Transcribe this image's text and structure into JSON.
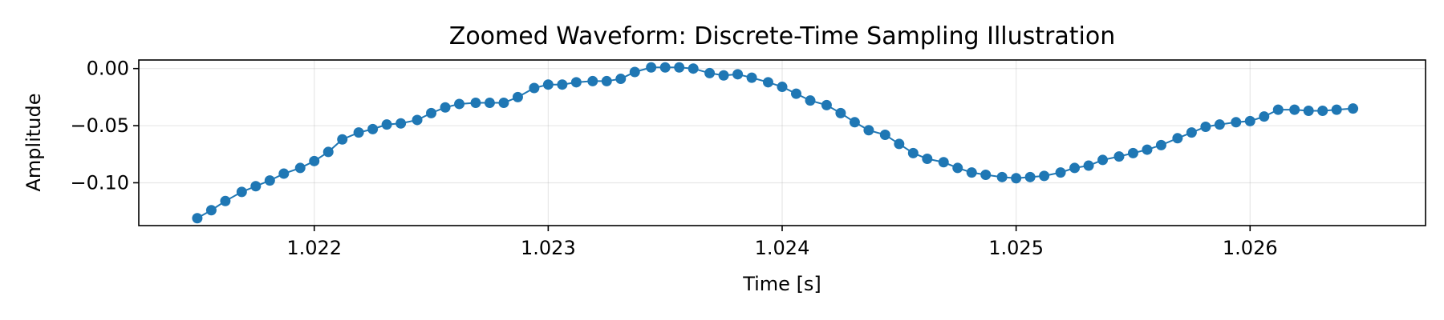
{
  "chart_data": {
    "type": "line",
    "title": "Zoomed Waveform: Discrete-Time Sampling Illustration",
    "xlabel": "Time [s]",
    "ylabel": "Amplitude",
    "xlim": [
      1.02125,
      1.02675
    ],
    "ylim": [
      -0.1375,
      0.0075
    ],
    "xticks": [
      1.022,
      1.023,
      1.024,
      1.025,
      1.026
    ],
    "xtick_labels": [
      "1.022",
      "1.023",
      "1.024",
      "1.025",
      "1.026"
    ],
    "yticks": [
      0.0,
      -0.05,
      -0.1
    ],
    "ytick_labels": [
      "0.00",
      "−0.05",
      "−0.10"
    ],
    "grid": true,
    "markers": true,
    "series": [
      {
        "color": "#1f77b4",
        "x": [
          1.0215,
          1.02156,
          1.02162,
          1.02169,
          1.02175,
          1.02181,
          1.02187,
          1.02194,
          1.022,
          1.02206,
          1.02212,
          1.02219,
          1.02225,
          1.02231,
          1.02237,
          1.02244,
          1.0225,
          1.02256,
          1.02262,
          1.02269,
          1.02275,
          1.02281,
          1.02287,
          1.02294,
          1.023,
          1.02306,
          1.02312,
          1.02319,
          1.02325,
          1.02331,
          1.02337,
          1.02344,
          1.0235,
          1.02356,
          1.02362,
          1.02369,
          1.02375,
          1.02381,
          1.02387,
          1.02394,
          1.024,
          1.02406,
          1.02412,
          1.02419,
          1.02425,
          1.02431,
          1.02437,
          1.02444,
          1.0245,
          1.02456,
          1.02462,
          1.02469,
          1.02475,
          1.02481,
          1.02487,
          1.02494,
          1.025,
          1.02506,
          1.02512,
          1.02519,
          1.02525,
          1.02531,
          1.02537,
          1.02544,
          1.0255,
          1.02556,
          1.02562,
          1.02569,
          1.02575,
          1.02581,
          1.02587,
          1.02594,
          1.026,
          1.02606,
          1.02612,
          1.02619,
          1.02625,
          1.02631,
          1.02637,
          1.02644
        ],
        "y": [
          -0.131,
          -0.124,
          -0.116,
          -0.108,
          -0.103,
          -0.098,
          -0.092,
          -0.087,
          -0.081,
          -0.073,
          -0.062,
          -0.056,
          -0.053,
          -0.049,
          -0.048,
          -0.045,
          -0.039,
          -0.034,
          -0.031,
          -0.03,
          -0.03,
          -0.03,
          -0.025,
          -0.017,
          -0.014,
          -0.014,
          -0.012,
          -0.011,
          -0.011,
          -0.009,
          -0.003,
          0.001,
          0.001,
          0.001,
          0.0,
          -0.004,
          -0.006,
          -0.005,
          -0.008,
          -0.012,
          -0.016,
          -0.022,
          -0.028,
          -0.032,
          -0.039,
          -0.047,
          -0.054,
          -0.058,
          -0.066,
          -0.074,
          -0.079,
          -0.082,
          -0.087,
          -0.091,
          -0.093,
          -0.095,
          -0.096,
          -0.095,
          -0.094,
          -0.091,
          -0.087,
          -0.085,
          -0.08,
          -0.077,
          -0.074,
          -0.071,
          -0.067,
          -0.061,
          -0.056,
          -0.051,
          -0.049,
          -0.047,
          -0.046,
          -0.042,
          -0.036,
          -0.036,
          -0.037,
          -0.037,
          -0.036,
          -0.035
        ]
      }
    ]
  }
}
